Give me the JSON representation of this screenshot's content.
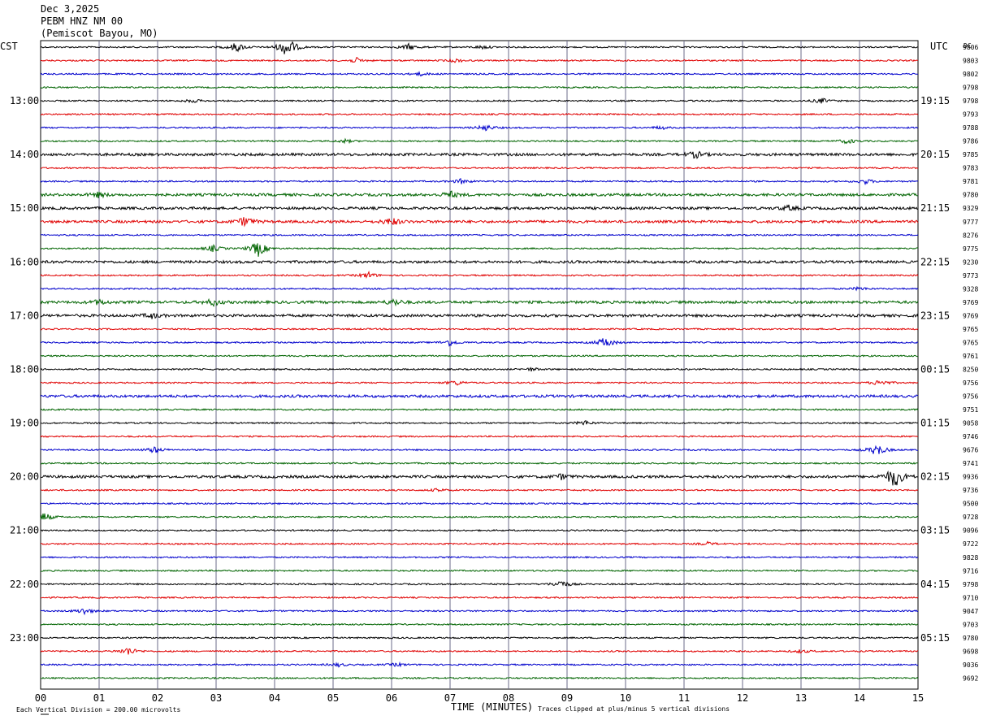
{
  "header": {
    "date": "Dec 3,2025",
    "station": "PEBM HNZ NM 00",
    "location": "(Pemiscot Bayou, MO)",
    "left_tz": "CST",
    "right_tz": "UTC",
    "dc_label": "DC"
  },
  "footer": {
    "xlabel": "TIME (MINUTES)",
    "scale_note": "Each Vertical Division =  200.00 microvolts",
    "clip_note": "Traces clipped at plus/minus 5 vertical divisions"
  },
  "colors": {
    "black": "#000000",
    "red": "#e00000",
    "blue": "#0000cc",
    "green": "#006400",
    "grid": "#6b6b8a"
  },
  "chart_data": {
    "type": "line",
    "title": "PEBM HNZ NM 00 (Pemiscot Bayou, MO) Dec 3,2025",
    "xlabel": "TIME (MINUTES)",
    "xlim": [
      0,
      15
    ],
    "x_ticks": [
      "00",
      "01",
      "02",
      "03",
      "04",
      "05",
      "06",
      "07",
      "08",
      "09",
      "10",
      "11",
      "12",
      "13",
      "14",
      "15"
    ],
    "trace_color_cycle": [
      "black",
      "red",
      "blue",
      "green"
    ],
    "left_time_labels": [
      "13:00",
      "14:00",
      "15:00",
      "16:00",
      "17:00",
      "18:00",
      "19:00",
      "20:00",
      "21:00",
      "22:00",
      "23:00"
    ],
    "right_time_labels": [
      "19:15",
      "20:15",
      "21:15",
      "22:15",
      "23:15",
      "00:15",
      "01:15",
      "02:15",
      "03:15",
      "04:15",
      "05:15"
    ],
    "dc_offsets": [
      9806,
      9803,
      9802,
      9798,
      9798,
      9793,
      9788,
      9786,
      9785,
      9783,
      9781,
      9780,
      9329,
      9777,
      8276,
      9775,
      9230,
      9773,
      9328,
      9769,
      9769,
      9765,
      9765,
      9761,
      8250,
      9756,
      9756,
      9751,
      9058,
      9746,
      9676,
      9741,
      9936,
      9736,
      9500,
      9728,
      9096,
      9722,
      9828,
      9716,
      9798,
      9710,
      9047,
      9703,
      9780,
      9698,
      9036,
      9692
    ],
    "events": [
      {
        "row": 0,
        "minute": 4.22,
        "amp": 14
      },
      {
        "row": 0,
        "minute": 3.35,
        "amp": 6
      },
      {
        "row": 0,
        "minute": 6.3,
        "amp": 4
      },
      {
        "row": 0,
        "minute": 7.55,
        "amp": 2
      },
      {
        "row": 1,
        "minute": 5.4,
        "amp": 3
      },
      {
        "row": 1,
        "minute": 7.1,
        "amp": 2
      },
      {
        "row": 2,
        "minute": 6.5,
        "amp": 2
      },
      {
        "row": 4,
        "minute": 2.6,
        "amp": 2
      },
      {
        "row": 4,
        "minute": 13.35,
        "amp": 3
      },
      {
        "row": 6,
        "minute": 7.6,
        "amp": 4
      },
      {
        "row": 6,
        "minute": 10.6,
        "amp": 2
      },
      {
        "row": 7,
        "minute": 5.2,
        "amp": 2
      },
      {
        "row": 7,
        "minute": 13.8,
        "amp": 3
      },
      {
        "row": 8,
        "minute": 11.2,
        "amp": 4
      },
      {
        "row": 10,
        "minute": 7.2,
        "amp": 3
      },
      {
        "row": 10,
        "minute": 14.1,
        "amp": 3
      },
      {
        "row": 11,
        "minute": 7.0,
        "amp": 4
      },
      {
        "row": 11,
        "minute": 1.0,
        "amp": 3
      },
      {
        "row": 12,
        "minute": 12.8,
        "amp": 3
      },
      {
        "row": 13,
        "minute": 3.5,
        "amp": 6
      },
      {
        "row": 13,
        "minute": 6.0,
        "amp": 5
      },
      {
        "row": 15,
        "minute": 3.72,
        "amp": 10
      },
      {
        "row": 15,
        "minute": 2.95,
        "amp": 4
      },
      {
        "row": 17,
        "minute": 5.6,
        "amp": 4
      },
      {
        "row": 18,
        "minute": 14.0,
        "amp": 2
      },
      {
        "row": 19,
        "minute": 2.95,
        "amp": 4
      },
      {
        "row": 19,
        "minute": 6.05,
        "amp": 4
      },
      {
        "row": 19,
        "minute": 1.0,
        "amp": 3
      },
      {
        "row": 20,
        "minute": 1.9,
        "amp": 3
      },
      {
        "row": 22,
        "minute": 7.0,
        "amp": 4
      },
      {
        "row": 22,
        "minute": 9.65,
        "amp": 7
      },
      {
        "row": 24,
        "minute": 8.4,
        "amp": 2
      },
      {
        "row": 25,
        "minute": 7.1,
        "amp": 3
      },
      {
        "row": 25,
        "minute": 14.35,
        "amp": 4
      },
      {
        "row": 28,
        "minute": 9.3,
        "amp": 3
      },
      {
        "row": 30,
        "minute": 1.95,
        "amp": 4
      },
      {
        "row": 30,
        "minute": 14.3,
        "amp": 8
      },
      {
        "row": 32,
        "minute": 14.6,
        "amp": 14
      },
      {
        "row": 32,
        "minute": 8.9,
        "amp": 3
      },
      {
        "row": 33,
        "minute": 6.8,
        "amp": 2
      },
      {
        "row": 35,
        "minute": 0.05,
        "amp": 6
      },
      {
        "row": 37,
        "minute": 11.4,
        "amp": 2
      },
      {
        "row": 40,
        "minute": 8.9,
        "amp": 5
      },
      {
        "row": 42,
        "minute": 0.75,
        "amp": 4
      },
      {
        "row": 45,
        "minute": 1.5,
        "amp": 5
      },
      {
        "row": 45,
        "minute": 13.0,
        "amp": 2
      },
      {
        "row": 46,
        "minute": 5.1,
        "amp": 2
      },
      {
        "row": 46,
        "minute": 6.1,
        "amp": 2
      }
    ],
    "noisy_rows": [
      8,
      11,
      12,
      13,
      16,
      19,
      20,
      26,
      32
    ]
  }
}
